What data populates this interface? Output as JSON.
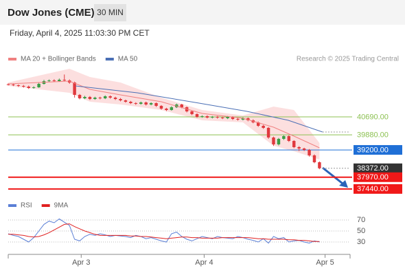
{
  "header": {
    "title": "Dow Jones (CME)",
    "interval": "30 MIN",
    "timestamp": "Friday, April 4, 2025 11:03:30 PM CET",
    "credit": "Research © 2025 Trading Central"
  },
  "chart_data": [
    {
      "type": "candlestick",
      "up_color": "#3a9d46",
      "down_color": "#e0393e",
      "xlim": [
        0,
        67
      ],
      "xticks": [
        {
          "value": 14.3,
          "label": "Apr 3"
        },
        {
          "value": 38.4,
          "label": "Apr 4"
        },
        {
          "value": 62.1,
          "label": "Apr 5"
        }
      ],
      "ylim": [
        37280,
        42860
      ],
      "open": [
        42160,
        42147,
        42116,
        42085,
        42054,
        41992,
        42023,
        42178,
        42302,
        42333,
        42302,
        42364,
        42333,
        42240,
        41682,
        41527,
        41589,
        41496,
        41558,
        41527,
        41620,
        41558,
        41496,
        41434,
        41372,
        41310,
        41279,
        41341,
        41248,
        41310,
        41186,
        41062,
        41000,
        41124,
        41248,
        41124,
        40938,
        40814,
        40690,
        40721,
        40659,
        40690,
        40659,
        40628,
        40690,
        40597,
        40566,
        40628,
        40535,
        40442,
        40287,
        40194,
        39760,
        39450,
        39698,
        39822,
        39605,
        39326,
        39264,
        39202,
        38954,
        38644
      ],
      "high": [
        42200,
        42190,
        42150,
        42130,
        42100,
        42070,
        42220,
        42360,
        42380,
        42390,
        42420,
        42600,
        42380,
        42280,
        41720,
        41640,
        41630,
        41600,
        41600,
        41660,
        41660,
        41600,
        41540,
        41470,
        41410,
        41350,
        41380,
        41380,
        41350,
        41340,
        41220,
        41100,
        41170,
        41290,
        41280,
        41160,
        40980,
        40850,
        40760,
        40760,
        40730,
        40730,
        40700,
        40730,
        40720,
        40640,
        40670,
        40660,
        40580,
        40480,
        40330,
        40230,
        39800,
        39740,
        39860,
        39860,
        39640,
        39370,
        39300,
        39240,
        39000,
        38680
      ],
      "low": [
        42110,
        42080,
        42040,
        42010,
        41950,
        41960,
        42000,
        42150,
        42270,
        42260,
        42280,
        42300,
        42180,
        41560,
        41480,
        41490,
        41450,
        41460,
        41480,
        41490,
        41510,
        41450,
        41390,
        41330,
        41270,
        41230,
        41240,
        41200,
        41210,
        41140,
        41010,
        40950,
        40970,
        41090,
        41080,
        40890,
        40770,
        40650,
        40650,
        40620,
        40620,
        40610,
        40590,
        40590,
        40550,
        40520,
        40530,
        40490,
        40400,
        40240,
        40150,
        39700,
        39380,
        39400,
        39650,
        39560,
        39280,
        39150,
        39150,
        38900,
        38600,
        38330
      ],
      "close": [
        42147,
        42116,
        42085,
        42054,
        41992,
        42023,
        42178,
        42302,
        42333,
        42302,
        42364,
        42333,
        42240,
        41682,
        41527,
        41589,
        41496,
        41558,
        41527,
        41620,
        41558,
        41496,
        41434,
        41372,
        41310,
        41279,
        41341,
        41248,
        41310,
        41186,
        41062,
        41000,
        41124,
        41248,
        41124,
        40938,
        40814,
        40690,
        40721,
        40659,
        40690,
        40659,
        40628,
        40690,
        40597,
        40566,
        40628,
        40535,
        40442,
        40287,
        40194,
        39760,
        39450,
        39698,
        39822,
        39605,
        39326,
        39264,
        39202,
        38954,
        38644,
        38372
      ],
      "series": [
        {
          "name": "MA 20 + Bollinger Bands",
          "color": "#f08080",
          "band_color": "#fbd7d7",
          "x": [
            0,
            6,
            12,
            16,
            22,
            30,
            38,
            46,
            52,
            56,
            61
          ],
          "values": [
            42178,
            42240,
            42302,
            41930,
            41682,
            41372,
            40845,
            40628,
            40225,
            39822,
            39295
          ],
          "upper": [
            42240,
            42550,
            42860,
            42488,
            42240,
            41558,
            41000,
            40752,
            41155,
            41000,
            39512
          ],
          "lower": [
            42085,
            41930,
            41775,
            41372,
            41248,
            41000,
            40535,
            40442,
            39388,
            39140,
            38768
          ]
        },
        {
          "name": "MA 50",
          "color": "#4a6fb5",
          "x": [
            13.2,
            25.3,
            37.4,
            46.8,
            54.9,
            61.6
          ],
          "values": [
            42085,
            41775,
            41310,
            40938,
            40535,
            40008
          ]
        }
      ],
      "levels": [
        {
          "price": {
            "value": 40690,
            "label": "40690.00"
          },
          "color": "#8cc152",
          "label_box": false,
          "dotted": false
        },
        {
          "price": {
            "value": 39880,
            "label": "39880.00"
          },
          "color": "#8cc152",
          "label_box": false,
          "dotted": false
        },
        {
          "price": {
            "value": 39200,
            "label": "39200.00"
          },
          "color": "#1f6fd6",
          "label_box": true,
          "dotted": false
        },
        {
          "price": {
            "value": 38372,
            "label": "38372.00"
          },
          "color": "#333333",
          "label_box": true,
          "dotted": true
        },
        {
          "price": {
            "value": 37970,
            "label": "37970.00"
          },
          "color": "#f01818",
          "label_box": true,
          "dotted": false
        },
        {
          "price": {
            "value": 37440,
            "label": "37440.00"
          },
          "color": "#f01818",
          "label_box": true,
          "dotted": false
        }
      ]
    },
    {
      "type": "line",
      "xlim": [
        0,
        67
      ],
      "ylim": [
        7.5,
        82.5
      ],
      "yticks": [
        70,
        50,
        30
      ],
      "grid": true,
      "series": [
        {
          "name": "RSI",
          "color": "#5b7fd6",
          "values": [
            45,
            42,
            40,
            35,
            30,
            38,
            50,
            62,
            68,
            65,
            72,
            66,
            60,
            35,
            32,
            40,
            44,
            42,
            45,
            43,
            40,
            42,
            41,
            40,
            38,
            42,
            40,
            36,
            38,
            35,
            32,
            30,
            45,
            48,
            40,
            35,
            32,
            36,
            40,
            38,
            36,
            40,
            38,
            37,
            36,
            40,
            38,
            35,
            33,
            30,
            36,
            28,
            40,
            36,
            38,
            30,
            32,
            33,
            30,
            28,
            32,
            30
          ]
        },
        {
          "name": "9MA",
          "color": "#e02020",
          "values": [
            44,
            44,
            43,
            42,
            40,
            39,
            40,
            43,
            47,
            52,
            57,
            62,
            63,
            58,
            54,
            50,
            47,
            44,
            42,
            42,
            42,
            42,
            42,
            42,
            41,
            41,
            40,
            40,
            39,
            38,
            37,
            36,
            37,
            38,
            39,
            39,
            38,
            38,
            37,
            37,
            37,
            37,
            38,
            38,
            38,
            38,
            38,
            38,
            37,
            36,
            36,
            35,
            35,
            35,
            35,
            34,
            34,
            33,
            33,
            32,
            31,
            31
          ]
        }
      ]
    }
  ]
}
